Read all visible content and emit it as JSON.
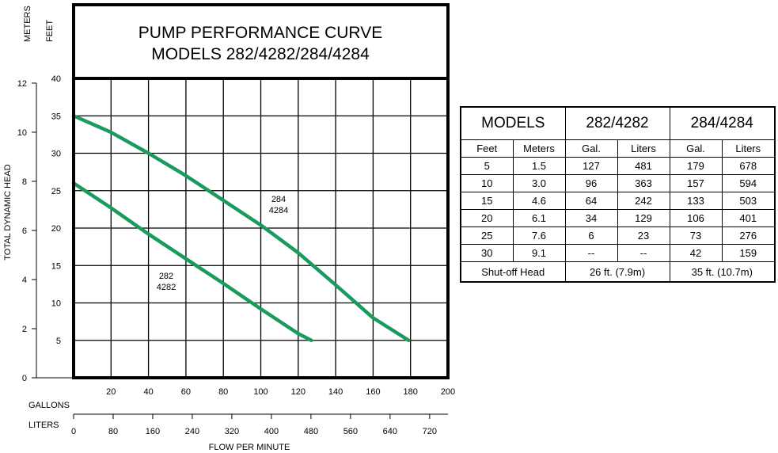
{
  "chart_data": {
    "type": "line",
    "title": "PUMP PERFORMANCE CURVE",
    "subtitle": "MODELS 282/4282/284/4284",
    "xlabel": "FLOW PER MINUTE",
    "x_gallons_label": "GALLONS",
    "x_liters_label": "LITERS",
    "y_feet_label": "FEET",
    "y_meters_label": "METERS",
    "y_axis_title": "TOTAL DYNAMIC HEAD",
    "xlim_gallons": [
      0,
      200
    ],
    "ylim_feet": [
      0,
      40
    ],
    "grid": true,
    "x_gallons_ticks": [
      "20",
      "40",
      "60",
      "80",
      "100",
      "120",
      "140",
      "160",
      "180",
      "200"
    ],
    "x_liters_ticks": [
      "0",
      "80",
      "160",
      "240",
      "320",
      "400",
      "480",
      "560",
      "640",
      "720"
    ],
    "y_feet_ticks": [
      "5",
      "10",
      "15",
      "20",
      "25",
      "30",
      "35",
      "40"
    ],
    "y_meters_ticks": [
      "0",
      "2",
      "4",
      "6",
      "8",
      "10",
      "12"
    ],
    "series": [
      {
        "name": "282\n4282",
        "label_lines": [
          "282",
          "4282"
        ],
        "color": "#1a9a5c",
        "x": [
          0,
          20,
          40,
          60,
          80,
          100,
          120,
          127
        ],
        "y": [
          26,
          22.7,
          19.2,
          15.9,
          12.6,
          9.2,
          5.9,
          5
        ]
      },
      {
        "name": "284\n4284",
        "label_lines": [
          "284",
          "4284"
        ],
        "color": "#1a9a5c",
        "x": [
          0,
          20,
          40,
          60,
          80,
          100,
          120,
          140,
          160,
          179
        ],
        "y": [
          35,
          32.8,
          30,
          27,
          23.7,
          20.4,
          16.7,
          12.4,
          8,
          5
        ]
      }
    ]
  },
  "table": {
    "models_label": "MODELS",
    "model_a": "282/4282",
    "model_b": "284/4284",
    "subheaders": [
      "Feet",
      "Meters",
      "Gal.",
      "Liters",
      "Gal.",
      "Liters"
    ],
    "rows": [
      [
        "5",
        "1.5",
        "127",
        "481",
        "179",
        "678"
      ],
      [
        "10",
        "3.0",
        "96",
        "363",
        "157",
        "594"
      ],
      [
        "15",
        "4.6",
        "64",
        "242",
        "133",
        "503"
      ],
      [
        "20",
        "6.1",
        "34",
        "129",
        "106",
        "401"
      ],
      [
        "25",
        "7.6",
        "6",
        "23",
        "73",
        "276"
      ],
      [
        "30",
        "9.1",
        "--",
        "--",
        "42",
        "159"
      ]
    ],
    "shutoff_label": "Shut-off Head",
    "shutoff_a": "26 ft. (7.9m)",
    "shutoff_b": "35 ft. (10.7m)"
  }
}
